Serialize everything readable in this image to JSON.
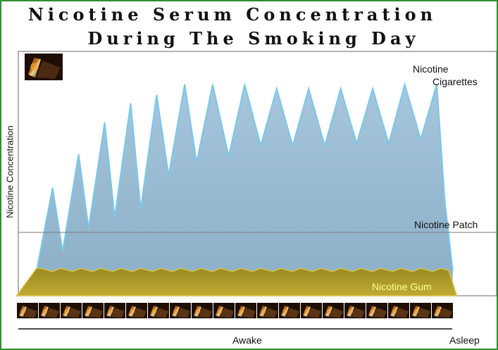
{
  "chart_data": {
    "type": "area",
    "title_line1": "Nicotine Serum Concentration",
    "title_line2": "During The Smoking Day",
    "ylabel": "Nicotine Concentration",
    "xlabel": "Awake",
    "x_end_label": "Asleep",
    "ylim": [
      0,
      100
    ],
    "series": [
      {
        "name": "Nicotine Cigarettes",
        "color": "#8fb3cc",
        "edge_color": "#78c8ec",
        "x": [
          0,
          4,
          6.5,
          10.5,
          13,
          17,
          19.5,
          23.5,
          26,
          30,
          33,
          37,
          40,
          44,
          48,
          52,
          56,
          60,
          64,
          68,
          72,
          76,
          80,
          84,
          88,
          92,
          96,
          100,
          102,
          104
        ],
        "values": [
          12,
          51,
          21,
          67,
          32,
          82,
          37,
          91,
          41,
          95,
          57,
          100,
          63,
          100,
          66,
          100,
          71,
          98,
          71,
          98,
          71,
          98,
          72,
          98,
          72,
          100,
          74,
          100,
          45,
          12
        ]
      },
      {
        "name": "Nicotine Gum",
        "color": "#a8962a",
        "edge_color": "#d9c343",
        "x": [
          -5,
          0,
          1,
          4,
          6,
          9,
          11,
          14,
          16,
          19,
          21,
          24,
          26,
          29,
          31,
          34,
          36,
          39,
          41,
          44,
          46,
          49,
          51,
          54,
          56,
          59,
          61,
          64,
          66,
          69,
          71,
          74,
          76,
          79,
          81,
          84,
          86,
          89,
          91,
          94,
          96,
          99,
          101,
          103,
          105
        ],
        "values": [
          0,
          13,
          13,
          11.5,
          13,
          11.5,
          13,
          11.5,
          13,
          11.5,
          13,
          11.5,
          13,
          11.5,
          13,
          11.5,
          13,
          11.5,
          13,
          11.5,
          13,
          11.5,
          13,
          11.5,
          13,
          11.5,
          13,
          11.5,
          13,
          11.5,
          13,
          11.5,
          13,
          11.5,
          13,
          11.5,
          13,
          11.5,
          13,
          11.5,
          13,
          11.5,
          13,
          12,
          0
        ]
      },
      {
        "name": "Nicotine Patch",
        "color": "#7a7a7a",
        "value": 30
      }
    ],
    "label_cig_line1": "Nicotine",
    "label_cig_line2": "Cigarettes",
    "label_patch": "Nicotine Patch",
    "label_gum": "Nicotine Gum",
    "gum_label_color": "#ffff99"
  },
  "icons": {
    "top_cigarette": "cigarette-photo-icon",
    "strip": "cigarette-photo-strip",
    "strip_count": 20
  }
}
